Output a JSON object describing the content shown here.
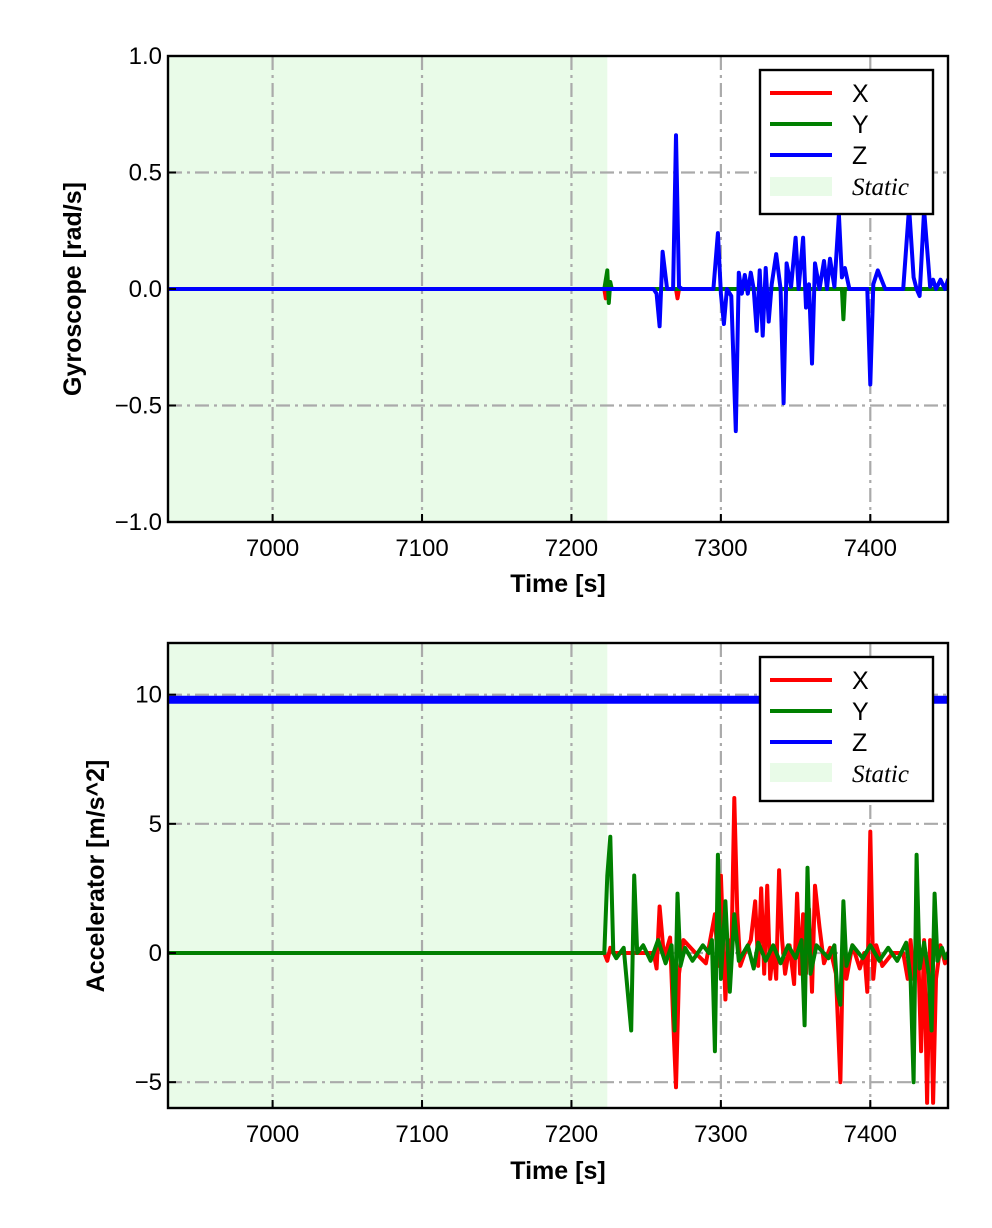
{
  "chart_data": [
    {
      "type": "line",
      "ylabel": "Gyroscope [rad/s]",
      "xlabel": "Time [s]",
      "xlim": [
        6930,
        7452
      ],
      "ylim": [
        -1.0,
        1.0
      ],
      "xticks": [
        7000,
        7100,
        7200,
        7300,
        7400
      ],
      "yticks": [
        -1.0,
        -0.5,
        0.0,
        0.5,
        1.0
      ],
      "ytick_labels": [
        "−1.0",
        "−0.5",
        "0.0",
        "0.5",
        "1.0"
      ],
      "grid": true,
      "legend_position": "top-right",
      "shaded_region": {
        "label": "Static",
        "x": [
          6930,
          7224
        ],
        "color": "#e9fbe8"
      },
      "series": [
        {
          "name": "X",
          "color": "#ff0000",
          "x": [
            6930,
            7222,
            7223,
            7224,
            7225,
            7226,
            7227,
            7270,
            7271,
            7272,
            7452
          ],
          "y": [
            0,
            0,
            -0.04,
            0.04,
            -0.03,
            0.02,
            0,
            0,
            -0.04,
            0,
            0
          ]
        },
        {
          "name": "Y",
          "color": "#008000",
          "x": [
            6930,
            7222,
            7224,
            7225,
            7226,
            7227,
            7381,
            7382,
            7383,
            7452
          ],
          "y": [
            0,
            0,
            0.08,
            -0.06,
            0.03,
            0,
            0,
            -0.13,
            0,
            0
          ]
        },
        {
          "name": "Z",
          "color": "#0000ff",
          "x": [
            6930,
            7255,
            7257,
            7259,
            7261,
            7264,
            7268,
            7270,
            7272,
            7274,
            7295,
            7298,
            7300,
            7302,
            7304,
            7307,
            7310,
            7312,
            7314,
            7316,
            7318,
            7320,
            7322,
            7324,
            7326,
            7328,
            7330,
            7332,
            7334,
            7337,
            7340,
            7342,
            7344,
            7347,
            7350,
            7352,
            7355,
            7357,
            7359,
            7361,
            7363,
            7366,
            7369,
            7371,
            7373,
            7376,
            7379,
            7381,
            7383,
            7386,
            7392,
            7398,
            7400,
            7402,
            7405,
            7410,
            7422,
            7426,
            7429,
            7431,
            7433,
            7436,
            7440,
            7442,
            7444,
            7447,
            7450,
            7452
          ],
          "y": [
            0,
            0,
            -0.02,
            -0.16,
            0.16,
            0,
            0,
            0.66,
            0.01,
            0,
            0,
            0.24,
            -0.02,
            -0.15,
            0,
            -0.03,
            -0.61,
            0.07,
            -0.02,
            0.06,
            -0.02,
            0.07,
            0,
            -0.18,
            0.08,
            -0.2,
            0.09,
            -0.14,
            0.02,
            0.15,
            0,
            -0.49,
            0.11,
            0.01,
            0.22,
            0,
            0.22,
            -0.08,
            0.02,
            -0.32,
            0.11,
            0,
            0.12,
            0,
            0.13,
            0.01,
            0.32,
            0.05,
            0.09,
            0,
            0,
            0,
            -0.41,
            0.02,
            0.08,
            0,
            0,
            0.35,
            0.05,
            0,
            -0.03,
            0.34,
            0.01,
            0.04,
            0,
            0.04,
            0,
            0.04
          ]
        }
      ]
    },
    {
      "type": "line",
      "ylabel": "Accelerator [m/s^2]",
      "xlabel": "Time [s]",
      "xlim": [
        6930,
        7452
      ],
      "ylim": [
        -6,
        12
      ],
      "xticks": [
        7000,
        7100,
        7200,
        7300,
        7400
      ],
      "yticks": [
        -5,
        0,
        5,
        10
      ],
      "ytick_labels": [
        "−5",
        "0",
        "5",
        "10"
      ],
      "grid": true,
      "legend_position": "top-right",
      "shaded_region": {
        "label": "Static",
        "x": [
          6930,
          7224
        ],
        "color": "#e9fbe8"
      },
      "series": [
        {
          "name": "X",
          "color": "#ff0000",
          "x": [
            6930,
            7222,
            7224,
            7226,
            7228,
            7255,
            7257,
            7259,
            7262,
            7266,
            7268,
            7270,
            7272,
            7275,
            7283,
            7290,
            7296,
            7298,
            7300,
            7303,
            7305,
            7307,
            7309,
            7311,
            7313,
            7316,
            7320,
            7323,
            7325,
            7327,
            7329,
            7331,
            7333,
            7335,
            7337,
            7339,
            7341,
            7343,
            7346,
            7349,
            7351,
            7353,
            7355,
            7357,
            7359,
            7361,
            7363,
            7366,
            7369,
            7373,
            7377,
            7380,
            7382,
            7384,
            7388,
            7393,
            7396,
            7398,
            7400,
            7402,
            7404,
            7408,
            7415,
            7422,
            7425,
            7427,
            7429,
            7432,
            7434,
            7436,
            7438,
            7440,
            7442,
            7444,
            7447,
            7450,
            7452
          ],
          "y": [
            0,
            0,
            -0.3,
            0.2,
            0,
            0,
            -0.6,
            1.8,
            -0.2,
            0.6,
            -2.5,
            -5.2,
            -0.8,
            0.5,
            0,
            -0.4,
            1.5,
            -0.5,
            3.0,
            -1.8,
            0.5,
            -0.3,
            6.0,
            1.5,
            -0.5,
            0,
            0.5,
            2.0,
            -0.5,
            2.5,
            -0.8,
            2.6,
            -1.0,
            0.2,
            -1.0,
            3.2,
            0.5,
            -0.8,
            0.3,
            -1.2,
            2.3,
            -0.8,
            1.5,
            -0.8,
            1.7,
            -1.5,
            2.6,
            1.0,
            -0.4,
            0.2,
            -0.8,
            -5.0,
            1.0,
            -1.0,
            0.3,
            -0.6,
            0,
            -1.5,
            4.7,
            -1.0,
            0.3,
            -0.5,
            0,
            0,
            -1.0,
            0.5,
            -1.0,
            0.2,
            -3.8,
            0.5,
            -5.8,
            0.5,
            -5.8,
            -1.0,
            0.3,
            -0.4,
            0
          ]
        },
        {
          "name": "Y",
          "color": "#008000",
          "x": [
            6930,
            7222,
            7224,
            7226,
            7228,
            7230,
            7235,
            7240,
            7242,
            7244,
            7248,
            7253,
            7258,
            7263,
            7267,
            7269,
            7271,
            7273,
            7276,
            7281,
            7288,
            7292,
            7294,
            7296,
            7298,
            7300,
            7303,
            7306,
            7309,
            7312,
            7318,
            7322,
            7325,
            7330,
            7335,
            7340,
            7345,
            7350,
            7354,
            7356,
            7358,
            7360,
            7364,
            7372,
            7376,
            7378,
            7380,
            7382,
            7384,
            7388,
            7395,
            7400,
            7406,
            7412,
            7418,
            7424,
            7427,
            7429,
            7431,
            7433,
            7436,
            7439,
            7441,
            7443,
            7445,
            7448,
            7450,
            7452
          ],
          "y": [
            0,
            0,
            3.0,
            4.5,
            0,
            -0.2,
            0.2,
            -3.0,
            3.0,
            0,
            0.3,
            -0.3,
            0.5,
            -0.4,
            0.3,
            -3.0,
            2.3,
            -0.5,
            0.2,
            -0.3,
            0.3,
            0,
            0.5,
            -3.8,
            3.8,
            -1.0,
            2.0,
            -1.5,
            1.5,
            -0.3,
            0.3,
            -0.6,
            0.4,
            -0.3,
            0.3,
            -0.4,
            0.3,
            -0.2,
            0.5,
            -2.8,
            3.3,
            -0.8,
            0.3,
            -0.2,
            0.3,
            -1.5,
            -2.0,
            2.0,
            -0.5,
            0.3,
            -0.2,
            0.3,
            -0.3,
            0.2,
            -0.3,
            0.4,
            -1.0,
            -5.0,
            3.8,
            -0.6,
            0.4,
            -0.8,
            -3.0,
            2.3,
            -0.3,
            0.2,
            -0.2,
            0
          ]
        },
        {
          "name": "Z",
          "color": "#0000ff",
          "x": [
            6930,
            7452
          ],
          "y": [
            9.8,
            9.8
          ]
        }
      ]
    }
  ]
}
